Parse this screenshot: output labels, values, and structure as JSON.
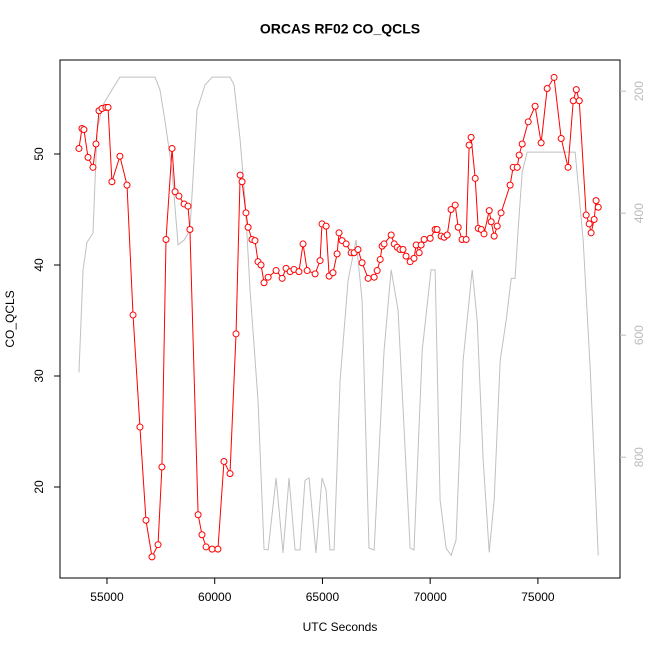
{
  "chart_data": {
    "type": "line",
    "title": "ORCAS RF02 CO_QCLS",
    "x_label": "UTC Seconds",
    "y_label": "CO_QCLS",
    "xlim": [
      52820,
      78810
    ],
    "ylim": [
      11.8,
      58.47
    ],
    "y2lim": [
      998,
      149
    ],
    "xticks": [
      55000,
      60000,
      65000,
      70000,
      75000
    ],
    "yticks": [
      20,
      30,
      40,
      50
    ],
    "y2ticks": [
      200,
      400,
      600,
      800
    ],
    "series": [
      {
        "color": "#ff0000",
        "markers": true,
        "x": [
          53700,
          53840,
          53930,
          54120,
          54350,
          54490,
          54630,
          54770,
          54950,
          55050,
          55230,
          55600,
          55930,
          56210,
          56530,
          56810,
          57090,
          57370,
          57550,
          57740,
          58020,
          58160,
          58340,
          58580,
          58760,
          58850,
          59230,
          59410,
          59600,
          59880,
          60150,
          60430,
          60710,
          60990,
          61180,
          61270,
          61450,
          61550,
          61730,
          61870,
          62010,
          62150,
          62290,
          62480,
          62850,
          63130,
          63310,
          63500,
          63680,
          63910,
          64100,
          64290,
          64660,
          64890,
          64980,
          65170,
          65310,
          65490,
          65680,
          65770,
          65910,
          66100,
          66330,
          66470,
          66650,
          66840,
          67120,
          67400,
          67540,
          67680,
          67770,
          67860,
          68190,
          68330,
          68470,
          68600,
          68740,
          68880,
          69070,
          69250,
          69350,
          69490,
          69580,
          69720,
          70000,
          70230,
          70320,
          70510,
          70650,
          70790,
          70970,
          71160,
          71300,
          71480,
          71670,
          71810,
          71900,
          72090,
          72230,
          72370,
          72500,
          72740,
          72830,
          72970,
          73110,
          73290,
          73710,
          73850,
          74040,
          74130,
          74270,
          74550,
          74870,
          75150,
          75430,
          75750,
          76080,
          76400,
          76640,
          76780,
          76920,
          77240,
          77380,
          77470,
          77610,
          77700,
          77800
        ],
        "values": [
          50.5,
          52.3,
          52.2,
          49.7,
          48.8,
          50.9,
          53.9,
          54.1,
          54.2,
          54.2,
          47.5,
          49.8,
          47.2,
          35.5,
          25.4,
          17.0,
          13.7,
          14.8,
          21.8,
          42.3,
          50.5,
          46.6,
          46.2,
          45.5,
          45.3,
          43.2,
          17.5,
          15.7,
          14.6,
          14.4,
          14.4,
          22.3,
          21.2,
          33.8,
          48.1,
          47.5,
          44.7,
          43.4,
          42.3,
          42.2,
          40.3,
          40.0,
          38.4,
          38.9,
          39.5,
          38.8,
          39.7,
          39.4,
          39.6,
          39.4,
          41.9,
          39.5,
          39.2,
          40.4,
          43.7,
          43.5,
          39.0,
          39.3,
          41.0,
          42.9,
          42.2,
          41.9,
          41.1,
          41.1,
          41.4,
          40.2,
          38.8,
          38.9,
          39.5,
          40.5,
          41.7,
          41.9,
          42.7,
          41.9,
          41.6,
          41.4,
          41.4,
          40.8,
          40.3,
          40.6,
          41.8,
          41.1,
          41.8,
          42.3,
          42.4,
          43.2,
          43.2,
          42.6,
          42.5,
          42.7,
          45.0,
          45.4,
          43.4,
          42.3,
          42.3,
          50.8,
          51.5,
          47.8,
          43.3,
          43.2,
          42.8,
          44.9,
          43.9,
          42.6,
          43.5,
          44.7,
          47.2,
          48.8,
          48.8,
          49.9,
          50.9,
          52.9,
          54.3,
          51.0,
          55.9,
          56.9,
          51.4,
          48.8,
          54.8,
          55.8,
          54.8,
          44.5,
          43.7,
          42.9,
          44.1,
          45.8,
          45.2
        ]
      },
      {
        "color": "#c0c0c0",
        "axis": "y2",
        "markers": false,
        "x": [
          53700,
          53890,
          54070,
          54350,
          54540,
          54810,
          55230,
          55600,
          57230,
          57460,
          57690,
          58020,
          58300,
          58580,
          58850,
          59180,
          59550,
          59880,
          60710,
          60900,
          61180,
          61410,
          61640,
          62010,
          62290,
          62480,
          62850,
          63170,
          63450,
          63730,
          63960,
          64190,
          64380,
          64700,
          64980,
          65170,
          65350,
          65540,
          65820,
          66190,
          66560,
          66840,
          67160,
          67400,
          67860,
          68190,
          68510,
          68840,
          69070,
          69250,
          69630,
          70040,
          70230,
          70460,
          70740,
          70970,
          71200,
          71530,
          71950,
          72180,
          72460,
          72740,
          72970,
          73250,
          73530,
          73760,
          73940,
          74080,
          74270,
          74500,
          74870,
          76730,
          77100,
          77430,
          77800
        ],
        "values": [
          661,
          493,
          448,
          433,
          264,
          223,
          198,
          177,
          177,
          198,
          248,
          330,
          452,
          444,
          428,
          231,
          190,
          177,
          177,
          190,
          280,
          379,
          526,
          707,
          951,
          952,
          834,
          957,
          834,
          952,
          952,
          838,
          834,
          957,
          834,
          854,
          952,
          952,
          674,
          510,
          444,
          543,
          949,
          952,
          625,
          493,
          559,
          789,
          949,
          952,
          625,
          493,
          493,
          870,
          949,
          961,
          936,
          641,
          493,
          575,
          805,
          956,
          870,
          641,
          575,
          507,
          507,
          428,
          333,
          300,
          300,
          300,
          444,
          657,
          961
        ]
      }
    ]
  }
}
